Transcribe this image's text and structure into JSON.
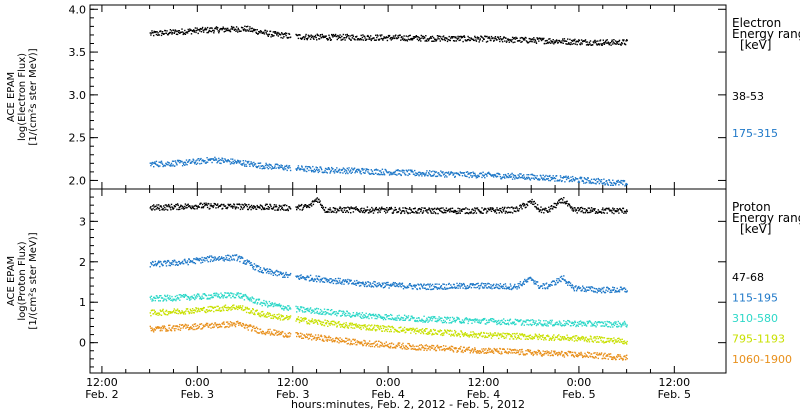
{
  "chart_data": [
    {
      "type": "scatter",
      "panel": "electron",
      "ylabel_lines": [
        "ACE EPAM",
        "log(Electron Flux)",
        "[1/(cm²s ster MeV)]"
      ],
      "ylim": [
        1.9,
        4.05
      ],
      "yticks": [
        2.0,
        2.5,
        3.0,
        3.5,
        4.0
      ],
      "ytick_labels": [
        "2.0",
        "2.5",
        "3.0",
        "3.5",
        "4.0"
      ],
      "legend_title_lines": [
        "Electron",
        "Energy ranges",
        "[keV]"
      ],
      "legend": [
        {
          "label": "38-53",
          "color": "#000000"
        },
        {
          "label": "175-315",
          "color": "#1f78c8"
        }
      ],
      "series": [
        {
          "name": "38-53",
          "color": "#000000",
          "points": [
            [
              6,
              3.72
            ],
            [
              12,
              3.76
            ],
            [
              18,
              3.78
            ],
            [
              21,
              3.72
            ],
            [
              24,
              3.69
            ],
            [
              28,
              3.68
            ],
            [
              32,
              3.68
            ],
            [
              40,
              3.67
            ],
            [
              48,
              3.66
            ],
            [
              56,
              3.64
            ],
            [
              62,
              3.62
            ],
            [
              66,
              3.62
            ]
          ]
        },
        {
          "name": "175-315",
          "color": "#1f78c8",
          "points": [
            [
              6,
              2.2
            ],
            [
              10,
              2.21
            ],
            [
              14,
              2.25
            ],
            [
              17,
              2.22
            ],
            [
              20,
              2.18
            ],
            [
              24,
              2.15
            ],
            [
              28,
              2.13
            ],
            [
              32,
              2.12
            ],
            [
              40,
              2.09
            ],
            [
              48,
              2.07
            ],
            [
              56,
              2.04
            ],
            [
              62,
              2.0
            ],
            [
              66,
              1.97
            ]
          ]
        }
      ]
    },
    {
      "type": "scatter",
      "panel": "proton",
      "ylabel_lines": [
        "ACE EPAM",
        "log(Proton Flux)",
        "[1/(cm²s ster MeV)]"
      ],
      "ylim": [
        -0.75,
        3.8
      ],
      "yticks": [
        0,
        1,
        2,
        3
      ],
      "ytick_labels": [
        "0",
        "1",
        "2",
        "3"
      ],
      "legend_title_lines": [
        "Proton",
        "Energy ranges",
        "[keV]"
      ],
      "legend": [
        {
          "label": "47-68",
          "color": "#000000"
        },
        {
          "label": "115-195",
          "color": "#1f78c8"
        },
        {
          "label": "310-580",
          "color": "#2dd8c8"
        },
        {
          "label": "795-1193",
          "color": "#c8e000"
        },
        {
          "label": "1060-1900",
          "color": "#e8901c"
        }
      ],
      "series": [
        {
          "name": "47-68",
          "color": "#000000",
          "points": [
            [
              6,
              3.35
            ],
            [
              12,
              3.4
            ],
            [
              18,
              3.38
            ],
            [
              24,
              3.35
            ],
            [
              26,
              3.38
            ],
            [
              27,
              3.58
            ],
            [
              28,
              3.3
            ],
            [
              32,
              3.3
            ],
            [
              40,
              3.28
            ],
            [
              48,
              3.28
            ],
            [
              52,
              3.3
            ],
            [
              54,
              3.5
            ],
            [
              55,
              3.3
            ],
            [
              56,
              3.28
            ],
            [
              58,
              3.55
            ],
            [
              59,
              3.3
            ],
            [
              62,
              3.28
            ],
            [
              66,
              3.28
            ]
          ]
        },
        {
          "name": "115-195",
          "color": "#1f78c8",
          "points": [
            [
              6,
              1.95
            ],
            [
              10,
              2.0
            ],
            [
              14,
              2.1
            ],
            [
              17,
              2.12
            ],
            [
              20,
              1.8
            ],
            [
              24,
              1.65
            ],
            [
              28,
              1.58
            ],
            [
              32,
              1.48
            ],
            [
              40,
              1.4
            ],
            [
              48,
              1.42
            ],
            [
              52,
              1.4
            ],
            [
              54,
              1.6
            ],
            [
              55,
              1.4
            ],
            [
              56,
              1.42
            ],
            [
              58,
              1.62
            ],
            [
              59,
              1.38
            ],
            [
              62,
              1.32
            ],
            [
              66,
              1.32
            ]
          ]
        },
        {
          "name": "310-580",
          "color": "#2dd8c8",
          "points": [
            [
              6,
              1.1
            ],
            [
              12,
              1.15
            ],
            [
              17,
              1.2
            ],
            [
              20,
              1.0
            ],
            [
              24,
              0.85
            ],
            [
              28,
              0.78
            ],
            [
              32,
              0.7
            ],
            [
              40,
              0.6
            ],
            [
              48,
              0.55
            ],
            [
              56,
              0.5
            ],
            [
              62,
              0.48
            ],
            [
              66,
              0.47
            ]
          ]
        },
        {
          "name": "795-1193",
          "color": "#c8e000",
          "points": [
            [
              6,
              0.75
            ],
            [
              12,
              0.82
            ],
            [
              17,
              0.9
            ],
            [
              20,
              0.72
            ],
            [
              24,
              0.6
            ],
            [
              28,
              0.5
            ],
            [
              32,
              0.42
            ],
            [
              40,
              0.3
            ],
            [
              48,
              0.2
            ],
            [
              56,
              0.15
            ],
            [
              62,
              0.1
            ],
            [
              66,
              0.05
            ]
          ]
        },
        {
          "name": "1060-1900",
          "color": "#e8901c",
          "points": [
            [
              6,
              0.35
            ],
            [
              12,
              0.42
            ],
            [
              17,
              0.48
            ],
            [
              20,
              0.3
            ],
            [
              24,
              0.2
            ],
            [
              28,
              0.12
            ],
            [
              32,
              0.02
            ],
            [
              40,
              -0.1
            ],
            [
              48,
              -0.18
            ],
            [
              56,
              -0.25
            ],
            [
              62,
              -0.3
            ],
            [
              66,
              -0.35
            ]
          ]
        }
      ]
    }
  ],
  "x_axis": {
    "xlim": [
      -1.5,
      78.5
    ],
    "major_ticks": [
      {
        "x": 0,
        "time": "12:00",
        "date": "Feb. 2"
      },
      {
        "x": 12,
        "time": "0:00",
        "date": "Feb. 3"
      },
      {
        "x": 24,
        "time": "12:00",
        "date": "Feb. 3"
      },
      {
        "x": 36,
        "time": "0:00",
        "date": "Feb. 4"
      },
      {
        "x": 48,
        "time": "12:00",
        "date": "Feb. 4"
      },
      {
        "x": 60,
        "time": "0:00",
        "date": "Feb. 5"
      },
      {
        "x": 72,
        "time": "12:00",
        "date": "Feb. 5"
      }
    ],
    "label": "hours:minutes, Feb.  2, 2012 - Feb.  5, 2012"
  }
}
